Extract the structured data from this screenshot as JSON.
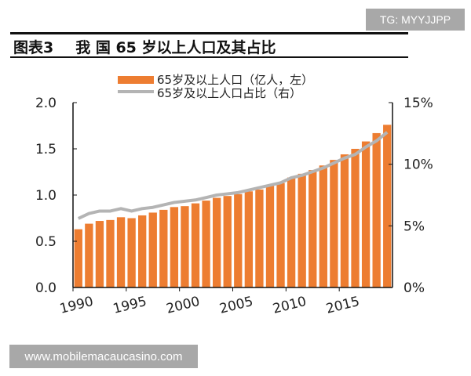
{
  "watermark_top": "TG: MYYJJPP",
  "watermark_bottom": "www.mobilemacaucasino.com",
  "header": {
    "label": "图表3",
    "title": "我 国 65 岁以上人口及其占比"
  },
  "chart_data": {
    "type": "bar+line",
    "categories": [
      1990,
      1991,
      1992,
      1993,
      1994,
      1995,
      1996,
      1997,
      1998,
      1999,
      2000,
      2001,
      2002,
      2003,
      2004,
      2005,
      2006,
      2007,
      2008,
      2009,
      2010,
      2011,
      2012,
      2013,
      2014,
      2015,
      2016,
      2017,
      2018,
      2019
    ],
    "x_tick_labels": [
      "1990",
      "1995",
      "2000",
      "2005",
      "2010",
      "2015"
    ],
    "series": [
      {
        "name": "65岁及以上人口（亿人，左）",
        "type": "bar",
        "axis": "left",
        "color": "#ed7d31",
        "values": [
          0.63,
          0.69,
          0.72,
          0.73,
          0.76,
          0.75,
          0.78,
          0.81,
          0.84,
          0.87,
          0.88,
          0.91,
          0.94,
          0.97,
          0.99,
          1.01,
          1.04,
          1.06,
          1.1,
          1.13,
          1.19,
          1.23,
          1.27,
          1.32,
          1.38,
          1.44,
          1.5,
          1.58,
          1.67,
          1.76
        ]
      },
      {
        "name": "65岁及以上人口占比（右）",
        "type": "line",
        "axis": "right",
        "color": "#b4b4b4",
        "values": [
          5.6,
          6.0,
          6.2,
          6.2,
          6.4,
          6.2,
          6.4,
          6.5,
          6.7,
          6.9,
          7.0,
          7.1,
          7.3,
          7.5,
          7.6,
          7.7,
          7.9,
          8.1,
          8.3,
          8.5,
          8.9,
          9.1,
          9.4,
          9.7,
          10.1,
          10.5,
          10.8,
          11.4,
          11.9,
          12.6
        ]
      }
    ],
    "left_axis": {
      "ylim": [
        0,
        2.0
      ],
      "ticks": [
        "0.0",
        "0.5",
        "1.0",
        "1.5",
        "2.0"
      ]
    },
    "right_axis": {
      "ylim": [
        0,
        15
      ],
      "ticks": [
        "0%",
        "5%",
        "10%",
        "15%"
      ]
    },
    "legend": "top-center",
    "grid": false
  }
}
